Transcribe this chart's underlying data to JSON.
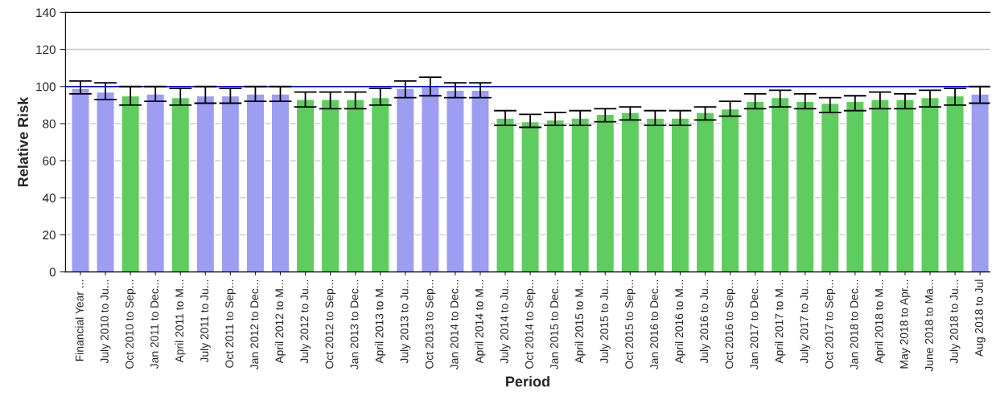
{
  "chart_data": {
    "type": "bar",
    "xlabel": "Period",
    "ylabel": "Relative Risk",
    "categories": [
      "Financial Year ...",
      "July 2010 to Ju...",
      "Oct 2010 to Sep...",
      "Jan 2011 to Dec...",
      "April 2011 to M...",
      "July 2011 to Ju...",
      "Oct 2011 to Sep...",
      "Jan 2012 to Dec...",
      "April 2012 to M...",
      "July 2012 to Ju...",
      "Oct 2012 to Sep...",
      "Jan 2013 to Dec...",
      "April 2013 to M...",
      "July 2013 to Ju...",
      "Oct 2013 to Sep...",
      "Jan 2014 to Dec...",
      "April 2014 to M...",
      "July 2014 to Ju...",
      "Oct 2014 to Sep...",
      "Jan 2015 to Dec...",
      "April 2015 to M...",
      "July 2015 to Ju...",
      "Oct 2015 to Sep...",
      "Jan 2016 to Dec...",
      "April 2016 to M...",
      "July 2016 to Ju...",
      "Oct 2016 to Sep...",
      "Jan 2017 to Dec...",
      "April 2017 to M...",
      "July 2017 to Ju...",
      "Oct 2017 to Sep...",
      "Jan 2018 to Dec...",
      "April 2018 to M...",
      "May 2018 to Apr...",
      "June 2018 to Ma...",
      "July 2018 to Ju...",
      "Aug 2018 to Jul"
    ],
    "values": [
      99,
      97,
      95,
      96,
      94,
      95,
      95,
      96,
      96,
      93,
      93,
      93,
      94,
      99,
      100,
      98,
      98,
      83,
      81,
      82,
      83,
      85,
      86,
      83,
      83,
      86,
      88,
      92,
      94,
      92,
      91,
      92,
      93,
      93,
      94,
      95,
      96
    ],
    "errors": [
      [
        96,
        103
      ],
      [
        93,
        102
      ],
      [
        90,
        100
      ],
      [
        92,
        100
      ],
      [
        90,
        99
      ],
      [
        91,
        100
      ],
      [
        91,
        99
      ],
      [
        92,
        100
      ],
      [
        92,
        100
      ],
      [
        89,
        97
      ],
      [
        88,
        97
      ],
      [
        88,
        97
      ],
      [
        90,
        99
      ],
      [
        94,
        103
      ],
      [
        95,
        105
      ],
      [
        94,
        102
      ],
      [
        94,
        102
      ],
      [
        79,
        87
      ],
      [
        78,
        85
      ],
      [
        79,
        86
      ],
      [
        79,
        87
      ],
      [
        81,
        88
      ],
      [
        82,
        89
      ],
      [
        79,
        87
      ],
      [
        79,
        87
      ],
      [
        82,
        89
      ],
      [
        84,
        92
      ],
      [
        88,
        96
      ],
      [
        89,
        98
      ],
      [
        88,
        96
      ],
      [
        86,
        94
      ],
      [
        87,
        95
      ],
      [
        88,
        97
      ],
      [
        88,
        96
      ],
      [
        89,
        98
      ],
      [
        90,
        99
      ],
      [
        91,
        100
      ]
    ],
    "colors": [
      "#9d9df2",
      "#9d9df2",
      "#5fcc5f",
      "#9d9df2",
      "#5fcc5f",
      "#9d9df2",
      "#9d9df2",
      "#9d9df2",
      "#9d9df2",
      "#5fcc5f",
      "#5fcc5f",
      "#5fcc5f",
      "#5fcc5f",
      "#9d9df2",
      "#9d9df2",
      "#9d9df2",
      "#9d9df2",
      "#5fcc5f",
      "#5fcc5f",
      "#5fcc5f",
      "#5fcc5f",
      "#5fcc5f",
      "#5fcc5f",
      "#5fcc5f",
      "#5fcc5f",
      "#5fcc5f",
      "#5fcc5f",
      "#5fcc5f",
      "#5fcc5f",
      "#5fcc5f",
      "#5fcc5f",
      "#5fcc5f",
      "#5fcc5f",
      "#5fcc5f",
      "#5fcc5f",
      "#5fcc5f",
      "#9d9df2"
    ],
    "ylim": [
      0,
      140
    ],
    "yticks": [
      0,
      20,
      40,
      60,
      80,
      100,
      120,
      140
    ],
    "grid": "y",
    "legend": false,
    "ref_lines": [
      {
        "axis": "y",
        "value": 100,
        "color": "#0000ff"
      }
    ]
  }
}
